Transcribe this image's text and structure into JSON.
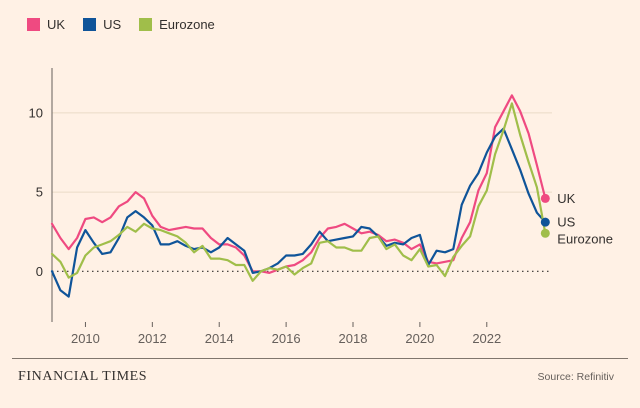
{
  "page": {
    "background": "#FFF1E5"
  },
  "legend": {
    "items": [
      {
        "label": "UK",
        "color": "#EF4A81"
      },
      {
        "label": "US",
        "color": "#0F5499"
      },
      {
        "label": "Eurozone",
        "color": "#A0BE4A"
      }
    ]
  },
  "footer": {
    "brand": "FINANCIAL TIMES",
    "source": "Source: Refinitiv"
  },
  "colors": {
    "background": "#FFF1E5",
    "axis": "#66605C",
    "gridline": "#EADBC8",
    "zero_line": "#33302E",
    "text_dark": "#33302E",
    "text_muted": "#66605C"
  },
  "chart_data": {
    "type": "line",
    "title": "",
    "xlabel": "",
    "ylabel": "",
    "y_ticks": [
      0,
      5,
      10
    ],
    "x_ticks": [
      2010,
      2012,
      2014,
      2016,
      2018,
      2020,
      2022
    ],
    "ylim": [
      -3.2,
      12.2
    ],
    "xlim": [
      2009,
      2023.95
    ],
    "zero_line": "dotted",
    "grid": "horizontal",
    "legend_position": "top-left",
    "x": [
      2009,
      2009.25,
      2009.5,
      2009.75,
      2010,
      2010.25,
      2010.5,
      2010.75,
      2011,
      2011.25,
      2011.5,
      2011.75,
      2012,
      2012.25,
      2012.5,
      2012.75,
      2013,
      2013.25,
      2013.5,
      2013.75,
      2014,
      2014.25,
      2014.5,
      2014.75,
      2015,
      2015.25,
      2015.5,
      2015.75,
      2016,
      2016.25,
      2016.5,
      2016.75,
      2017,
      2017.25,
      2017.5,
      2017.75,
      2018,
      2018.25,
      2018.5,
      2018.75,
      2019,
      2019.25,
      2019.5,
      2019.75,
      2020,
      2020.25,
      2020.5,
      2020.75,
      2021,
      2021.25,
      2021.5,
      2021.75,
      2022,
      2022.25,
      2022.5,
      2022.75,
      2023,
      2023.25,
      2023.5,
      2023.75
    ],
    "series": [
      {
        "name": "UK",
        "color": "#EF4A81",
        "end_label": "UK",
        "values": [
          3.0,
          2.1,
          1.4,
          2.1,
          3.3,
          3.4,
          3.1,
          3.4,
          4.1,
          4.4,
          5.0,
          4.6,
          3.5,
          2.8,
          2.6,
          2.7,
          2.8,
          2.7,
          2.7,
          2.1,
          1.7,
          1.7,
          1.5,
          1.0,
          0.0,
          0.0,
          -0.1,
          0.1,
          0.3,
          0.4,
          0.7,
          1.2,
          2.1,
          2.7,
          2.8,
          3.0,
          2.7,
          2.4,
          2.5,
          2.3,
          1.9,
          2.0,
          1.8,
          1.4,
          1.7,
          0.6,
          0.5,
          0.6,
          0.7,
          2.1,
          3.1,
          5.1,
          6.2,
          9.1,
          10.1,
          11.1,
          10.1,
          8.7,
          6.7,
          4.6
        ]
      },
      {
        "name": "US",
        "color": "#0F5499",
        "end_label": "US",
        "values": [
          0.0,
          -1.2,
          -1.6,
          1.5,
          2.6,
          1.8,
          1.1,
          1.2,
          2.1,
          3.4,
          3.8,
          3.4,
          2.9,
          1.7,
          1.7,
          1.9,
          1.6,
          1.4,
          1.5,
          1.2,
          1.5,
          2.1,
          1.7,
          1.3,
          -0.1,
          0.0,
          0.2,
          0.5,
          1.0,
          1.0,
          1.1,
          1.7,
          2.5,
          1.9,
          2.0,
          2.1,
          2.2,
          2.8,
          2.7,
          2.2,
          1.6,
          1.8,
          1.7,
          2.1,
          2.3,
          0.4,
          1.3,
          1.2,
          1.4,
          4.2,
          5.4,
          6.2,
          7.5,
          8.5,
          9.0,
          7.7,
          6.4,
          4.9,
          3.7,
          3.1
        ]
      },
      {
        "name": "Eurozone",
        "color": "#A0BE4A",
        "end_label": "Eurozone",
        "values": [
          1.1,
          0.6,
          -0.4,
          -0.1,
          1.0,
          1.5,
          1.7,
          1.9,
          2.3,
          2.8,
          2.5,
          3.0,
          2.7,
          2.6,
          2.4,
          2.2,
          1.8,
          1.2,
          1.6,
          0.8,
          0.8,
          0.7,
          0.4,
          0.4,
          -0.6,
          0.0,
          0.2,
          0.1,
          0.3,
          -0.2,
          0.2,
          0.5,
          1.8,
          1.9,
          1.5,
          1.5,
          1.3,
          1.3,
          2.1,
          2.2,
          1.4,
          1.7,
          1.0,
          0.7,
          1.4,
          0.3,
          0.4,
          -0.3,
          0.9,
          1.6,
          2.2,
          4.1,
          5.1,
          7.4,
          8.9,
          10.6,
          8.6,
          6.9,
          5.3,
          2.4
        ]
      }
    ]
  }
}
